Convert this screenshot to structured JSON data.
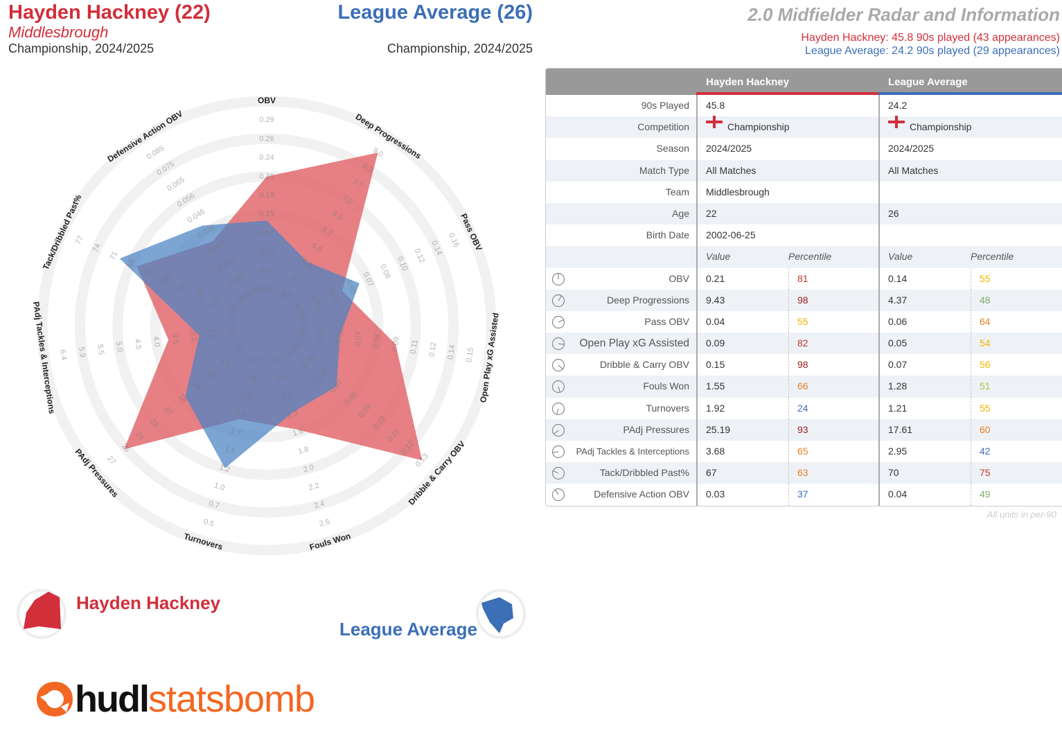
{
  "header": {
    "player_title": "Hayden Hackney (22)",
    "player_team": "Middlesbrough",
    "player_comp": "Championship, 2024/2025",
    "avg_title": "League Average (26)",
    "avg_comp": "Championship, 2024/2025",
    "main_title": "2.0 Midfielder Radar and Information",
    "info_player": "Hayden Hackney: 45.8 90s played (43 appearances)",
    "info_avg": "League Average: 24.2 90s played (29 appearances)"
  },
  "colors": {
    "player": "#d12f3a",
    "average": "#3b6fb6",
    "player_fill": "#e26a6f",
    "average_fill": "#4a82c4"
  },
  "chart_data": {
    "type": "radar",
    "axes": [
      {
        "name": "OBV",
        "ticks": [
          "0.04",
          "0.07",
          "0.10",
          "0.12",
          "0.15",
          "0.18",
          "0.21",
          "0.24",
          "0.26",
          "0.29"
        ]
      },
      {
        "name": "Deep Progressions",
        "ticks": [
          "3.0",
          "3.7",
          "4.3",
          "5.0",
          "5.7",
          "6.3",
          "7.0",
          "7.7",
          "8.3",
          "9.0"
        ]
      },
      {
        "name": "Pass OBV",
        "ticks": [
          "-0.01",
          "0.01",
          "0.03",
          "0.05",
          "0.07",
          "0.08",
          "0.10",
          "0.12",
          "0.14",
          "0.16"
        ]
      },
      {
        "name": "Open Play xG Assisted",
        "ticks": [
          "0.02",
          "0.04",
          "0.05",
          "0.07",
          "0.08",
          "0.09",
          "0.11",
          "0.12",
          "0.14",
          "0.15"
        ]
      },
      {
        "name": "Dribble & Carry OBV",
        "ticks": [
          "0.04",
          "0.05",
          "0.06",
          "0.07",
          "0.08",
          "0.09",
          "0.10",
          "0.11",
          "0.12",
          "0.13"
        ]
      },
      {
        "name": "Fouls Won",
        "ticks": [
          "0.7",
          "0.9",
          "1.1",
          "1.3",
          "1.6",
          "1.8",
          "2.0",
          "2.2",
          "2.4",
          "2.6"
        ]
      },
      {
        "name": "Turnovers",
        "ticks": [
          "2.7",
          "2.5",
          "2.2",
          "2.0",
          "1.7",
          "1.5",
          "1.2",
          "1.0",
          "0.7",
          "0.5"
        ]
      },
      {
        "name": "PAdj Pressures",
        "ticks": [
          "11",
          "13",
          "15",
          "16",
          "18",
          "20",
          "22",
          "24",
          "25",
          "27"
        ]
      },
      {
        "name": "PAdj Tackles & Interceptions",
        "ticks": [
          "2.1",
          "2.6",
          "3.1",
          "3.5",
          "4.0",
          "4.5",
          "5.0",
          "5.5",
          "5.9",
          "6.4"
        ]
      },
      {
        "name": "Tack/Dribbled Past%",
        "ticks": [
          "50",
          "53",
          "56",
          "59",
          "62",
          "65",
          "68",
          "71",
          "74",
          "77"
        ]
      },
      {
        "name": "Defensive Action OBV",
        "ticks": [
          "-0.003",
          "0.007",
          "0.017",
          "0.026",
          "0.036",
          "0.046",
          "0.056",
          "0.065",
          "0.075",
          "0.085"
        ]
      }
    ],
    "series": [
      {
        "name": "Hayden Hackney",
        "values": [
          0.21,
          9.43,
          0.04,
          0.09,
          0.15,
          1.55,
          1.92,
          25.19,
          3.68,
          67,
          0.03
        ]
      },
      {
        "name": "League Average",
        "values": [
          0.14,
          4.37,
          0.06,
          0.05,
          0.07,
          1.28,
          1.21,
          17.61,
          2.95,
          70,
          0.04
        ]
      }
    ]
  },
  "legend": {
    "player": "Hayden Hackney",
    "average": "League Average"
  },
  "table": {
    "col_player": "Hayden Hackney",
    "col_average": "League Average",
    "info_rows": [
      {
        "label": "90s Played",
        "p": "45.8",
        "a": "24.2"
      },
      {
        "label": "Competition",
        "p": "Championship",
        "a": "Championship",
        "flag": true
      },
      {
        "label": "Season",
        "p": "2024/2025",
        "a": "2024/2025"
      },
      {
        "label": "Match Type",
        "p": "All Matches",
        "a": "All Matches"
      },
      {
        "label": "Team",
        "p": "Middlesbrough",
        "a": ""
      },
      {
        "label": "Age",
        "p": "22",
        "a": "26"
      },
      {
        "label": "Birth Date",
        "p": "2002-06-25",
        "a": ""
      }
    ],
    "sub_value": "Value",
    "sub_percentile": "Percentile",
    "stat_rows": [
      {
        "label": "OBV",
        "pv": "0.21",
        "pp": "81",
        "ppc": "#c0392b",
        "av": "0.14",
        "ap": "55",
        "apc": "#f0b400"
      },
      {
        "label": "Deep Progressions",
        "pv": "9.43",
        "pp": "98",
        "ppc": "#9b1c1c",
        "av": "4.37",
        "ap": "48",
        "apc": "#7fae6b"
      },
      {
        "label": "Pass OBV",
        "pv": "0.04",
        "pp": "55",
        "ppc": "#f0b400",
        "av": "0.06",
        "ap": "64",
        "apc": "#e67e22"
      },
      {
        "label": "Open Play xG Assisted",
        "pv": "0.09",
        "pp": "82",
        "ppc": "#c0392b",
        "av": "0.05",
        "ap": "54",
        "apc": "#f0b400"
      },
      {
        "label": "Dribble & Carry OBV",
        "pv": "0.15",
        "pp": "98",
        "ppc": "#9b1c1c",
        "av": "0.07",
        "ap": "56",
        "apc": "#f0b400"
      },
      {
        "label": "Fouls Won",
        "pv": "1.55",
        "pp": "66",
        "ppc": "#e67e22",
        "av": "1.28",
        "ap": "51",
        "apc": "#b5c243"
      },
      {
        "label": "Turnovers",
        "pv": "1.92",
        "pp": "24",
        "ppc": "#3b6fb6",
        "av": "1.21",
        "ap": "55",
        "apc": "#f0b400"
      },
      {
        "label": "PAdj Pressures",
        "pv": "25.19",
        "pp": "93",
        "ppc": "#9b1c1c",
        "av": "17.61",
        "ap": "60",
        "apc": "#e67e22"
      },
      {
        "label": "PAdj Tackles & Interceptions",
        "pv": "3.68",
        "pp": "65",
        "ppc": "#e67e22",
        "av": "2.95",
        "ap": "42",
        "apc": "#3b6fb6"
      },
      {
        "label": "Tack/Dribbled Past%",
        "pv": "67",
        "pp": "63",
        "ppc": "#e67e22",
        "av": "70",
        "ap": "75",
        "apc": "#c0392b"
      },
      {
        "label": "Defensive Action OBV",
        "pv": "0.03",
        "pp": "37",
        "ppc": "#3b6fb6",
        "av": "0.04",
        "ap": "49",
        "apc": "#7fae6b"
      }
    ],
    "note": "All units in per-90"
  },
  "logo": {
    "part1": "hudl",
    "part2": "statsbomb"
  }
}
